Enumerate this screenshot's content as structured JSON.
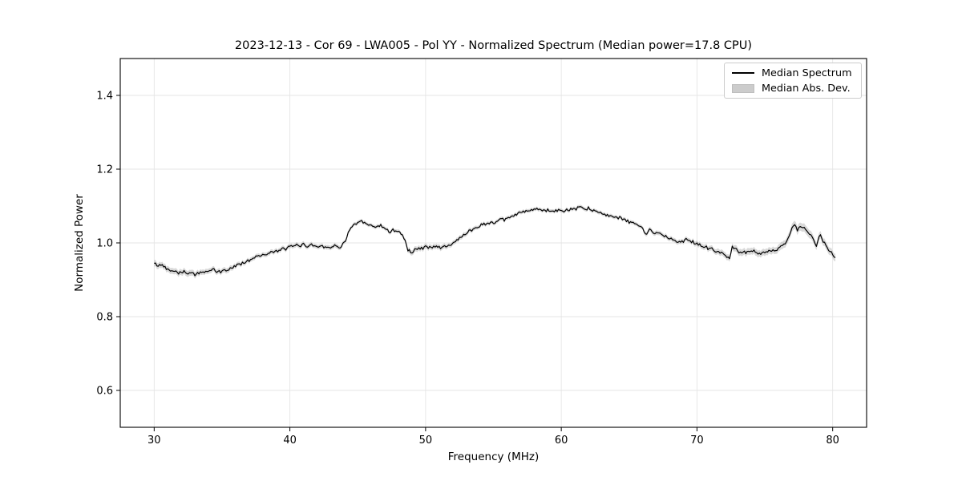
{
  "figure": {
    "title": "2023-12-13 - Cor 69 - LWA005 - Pol YY - Normalized Spectrum (Median power=17.8 CPU)"
  },
  "chart_data": {
    "type": "line",
    "title": "2023-12-13 - Cor 69 - LWA005 - Pol YY - Normalized Spectrum (Median power=17.8 CPU)",
    "xlabel": "Frequency (MHz)",
    "ylabel": "Normalized Power",
    "xlim": [
      27.5,
      82.5
    ],
    "ylim": [
      0.5,
      1.5
    ],
    "x_ticks": [
      30,
      40,
      50,
      60,
      70,
      80
    ],
    "y_ticks": [
      0.6,
      0.8,
      1.0,
      1.2,
      1.4
    ],
    "grid": true,
    "legend": {
      "position": "upper right",
      "entries": [
        {
          "label": "Median Spectrum",
          "type": "line",
          "color": "#000000"
        },
        {
          "label": "Median Abs. Dev.",
          "type": "patch",
          "color": "#cccccc"
        }
      ]
    },
    "colors": {
      "line": "#000000",
      "band": "#aaaaaa",
      "grid": "#e5e5e5",
      "spine": "#000000"
    },
    "noise_amplitude": 0.004,
    "series": [
      {
        "name": "Median Spectrum",
        "point_format": [
          "frequency_mhz",
          "normalized_power",
          "median_abs_dev"
        ],
        "points": [
          [
            30.0,
            0.944,
            0.009
          ],
          [
            30.3,
            0.938,
            0.008
          ],
          [
            30.6,
            0.94,
            0.008
          ],
          [
            31.0,
            0.929,
            0.008
          ],
          [
            31.4,
            0.925,
            0.008
          ],
          [
            31.8,
            0.921,
            0.008
          ],
          [
            32.2,
            0.922,
            0.008
          ],
          [
            32.6,
            0.917,
            0.008
          ],
          [
            33.0,
            0.916,
            0.008
          ],
          [
            33.4,
            0.919,
            0.007
          ],
          [
            33.8,
            0.921,
            0.007
          ],
          [
            34.2,
            0.927,
            0.007
          ],
          [
            34.5,
            0.924,
            0.007
          ],
          [
            34.8,
            0.921,
            0.007
          ],
          [
            35.2,
            0.925,
            0.007
          ],
          [
            35.6,
            0.93,
            0.007
          ],
          [
            36.0,
            0.938,
            0.006
          ],
          [
            36.4,
            0.944,
            0.006
          ],
          [
            36.8,
            0.95,
            0.006
          ],
          [
            37.2,
            0.957,
            0.006
          ],
          [
            37.6,
            0.964,
            0.006
          ],
          [
            38.0,
            0.969,
            0.006
          ],
          [
            38.4,
            0.972,
            0.006
          ],
          [
            38.8,
            0.975,
            0.006
          ],
          [
            39.2,
            0.979,
            0.006
          ],
          [
            39.6,
            0.984,
            0.006
          ],
          [
            40.0,
            0.988,
            0.006
          ],
          [
            40.4,
            0.992,
            0.006
          ],
          [
            40.8,
            0.995,
            0.006
          ],
          [
            41.2,
            0.993,
            0.006
          ],
          [
            41.6,
            0.994,
            0.006
          ],
          [
            42.0,
            0.991,
            0.006
          ],
          [
            42.4,
            0.992,
            0.006
          ],
          [
            42.8,
            0.989,
            0.006
          ],
          [
            43.2,
            0.991,
            0.006
          ],
          [
            43.6,
            0.988,
            0.006
          ],
          [
            44.0,
            1.0,
            0.005
          ],
          [
            44.4,
            1.035,
            0.005
          ],
          [
            44.8,
            1.05,
            0.005
          ],
          [
            45.2,
            1.057,
            0.005
          ],
          [
            45.6,
            1.052,
            0.005
          ],
          [
            46.0,
            1.046,
            0.005
          ],
          [
            46.4,
            1.042,
            0.005
          ],
          [
            46.7,
            1.047,
            0.005
          ],
          [
            47.0,
            1.038,
            0.005
          ],
          [
            47.4,
            1.032,
            0.005
          ],
          [
            47.7,
            1.036,
            0.005
          ],
          [
            48.0,
            1.029,
            0.005
          ],
          [
            48.3,
            1.024,
            0.005
          ],
          [
            48.5,
            1.005,
            0.006
          ],
          [
            48.7,
            0.98,
            0.007
          ],
          [
            49.0,
            0.977,
            0.007
          ],
          [
            49.4,
            0.983,
            0.007
          ],
          [
            49.8,
            0.987,
            0.007
          ],
          [
            50.2,
            0.989,
            0.007
          ],
          [
            50.6,
            0.99,
            0.007
          ],
          [
            51.0,
            0.987,
            0.007
          ],
          [
            51.4,
            0.99,
            0.007
          ],
          [
            51.8,
            0.994,
            0.006
          ],
          [
            52.2,
            1.004,
            0.006
          ],
          [
            52.6,
            1.016,
            0.006
          ],
          [
            53.0,
            1.026,
            0.006
          ],
          [
            53.4,
            1.035,
            0.006
          ],
          [
            53.8,
            1.044,
            0.005
          ],
          [
            54.2,
            1.05,
            0.005
          ],
          [
            54.6,
            1.053,
            0.005
          ],
          [
            55.0,
            1.055,
            0.005
          ],
          [
            55.4,
            1.059,
            0.005
          ],
          [
            55.8,
            1.063,
            0.005
          ],
          [
            56.2,
            1.068,
            0.005
          ],
          [
            56.6,
            1.078,
            0.005
          ],
          [
            57.0,
            1.082,
            0.005
          ],
          [
            57.4,
            1.085,
            0.005
          ],
          [
            57.8,
            1.088,
            0.005
          ],
          [
            58.2,
            1.092,
            0.005
          ],
          [
            58.6,
            1.086,
            0.005
          ],
          [
            59.0,
            1.091,
            0.005
          ],
          [
            59.4,
            1.086,
            0.005
          ],
          [
            59.8,
            1.089,
            0.005
          ],
          [
            60.2,
            1.086,
            0.005
          ],
          [
            60.6,
            1.088,
            0.005
          ],
          [
            61.0,
            1.091,
            0.005
          ],
          [
            61.4,
            1.097,
            0.005
          ],
          [
            61.7,
            1.089,
            0.005
          ],
          [
            62.0,
            1.094,
            0.005
          ],
          [
            62.4,
            1.086,
            0.005
          ],
          [
            62.8,
            1.082,
            0.005
          ],
          [
            63.2,
            1.08,
            0.005
          ],
          [
            63.6,
            1.074,
            0.005
          ],
          [
            64.0,
            1.07,
            0.005
          ],
          [
            64.4,
            1.066,
            0.005
          ],
          [
            64.8,
            1.06,
            0.005
          ],
          [
            65.2,
            1.055,
            0.005
          ],
          [
            65.6,
            1.048,
            0.005
          ],
          [
            66.0,
            1.042,
            0.005
          ],
          [
            66.2,
            1.02,
            0.006
          ],
          [
            66.5,
            1.036,
            0.006
          ],
          [
            66.8,
            1.031,
            0.006
          ],
          [
            67.2,
            1.026,
            0.006
          ],
          [
            67.6,
            1.02,
            0.006
          ],
          [
            68.0,
            1.012,
            0.006
          ],
          [
            68.4,
            1.007,
            0.006
          ],
          [
            68.8,
            1.004,
            0.006
          ],
          [
            69.2,
            1.007,
            0.006
          ],
          [
            69.6,
            1.003,
            0.006
          ],
          [
            70.0,
            0.998,
            0.007
          ],
          [
            70.4,
            0.992,
            0.007
          ],
          [
            70.8,
            0.986,
            0.007
          ],
          [
            71.2,
            0.98,
            0.007
          ],
          [
            71.6,
            0.975,
            0.008
          ],
          [
            72.0,
            0.971,
            0.008
          ],
          [
            72.4,
            0.957,
            0.008
          ],
          [
            72.6,
            0.991,
            0.008
          ],
          [
            73.0,
            0.977,
            0.009
          ],
          [
            73.4,
            0.972,
            0.009
          ],
          [
            73.8,
            0.976,
            0.009
          ],
          [
            74.2,
            0.979,
            0.009
          ],
          [
            74.6,
            0.972,
            0.009
          ],
          [
            75.0,
            0.974,
            0.009
          ],
          [
            75.4,
            0.977,
            0.009
          ],
          [
            75.8,
            0.98,
            0.009
          ],
          [
            76.2,
            0.988,
            0.01
          ],
          [
            76.6,
            1.005,
            0.01
          ],
          [
            76.9,
            1.032,
            0.011
          ],
          [
            77.2,
            1.048,
            0.011
          ],
          [
            77.4,
            1.036,
            0.011
          ],
          [
            77.7,
            1.044,
            0.011
          ],
          [
            78.0,
            1.035,
            0.011
          ],
          [
            78.3,
            1.022,
            0.011
          ],
          [
            78.6,
            1.01,
            0.01
          ],
          [
            78.8,
            0.988,
            0.01
          ],
          [
            79.0,
            1.022,
            0.01
          ],
          [
            79.3,
            1.006,
            0.01
          ],
          [
            79.6,
            0.987,
            0.01
          ],
          [
            79.9,
            0.972,
            0.01
          ],
          [
            80.2,
            0.96,
            0.01
          ]
        ]
      }
    ]
  }
}
